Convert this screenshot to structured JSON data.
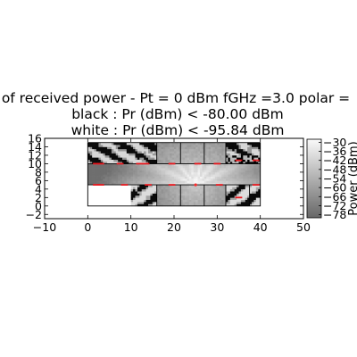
{
  "chart_data": {
    "type": "heatmap",
    "title_lines": [
      "of received power - Pt = 0 dBm fGHz =3.0 polar =",
      "black : Pr (dBm) < -80.00 dBm",
      "white : Pr (dBm) < -95.84 dBm"
    ],
    "xlim": [
      -10,
      50
    ],
    "ylim": [
      -3,
      16
    ],
    "xticks": [
      -10,
      0,
      10,
      20,
      30,
      40,
      50
    ],
    "yticks": [
      -2,
      0,
      2,
      4,
      6,
      8,
      10,
      12,
      14,
      16
    ],
    "grid": false,
    "colorbar": {
      "label": "Power (dBm)",
      "range": [
        -80,
        -28
      ],
      "ticks": [
        -30,
        -36,
        -42,
        -48,
        -54,
        -60,
        -66,
        -72,
        -78
      ],
      "colormap": "gray"
    },
    "building": {
      "outline": [
        [
          0,
          0
        ],
        [
          40,
          0
        ],
        [
          40,
          15
        ],
        [
          0,
          15
        ]
      ],
      "corridor_y": [
        5,
        10
      ],
      "top_room_walls_x": [
        16,
        21.5,
        27,
        32
      ],
      "bottom_room_walls_x": [
        16,
        21.5,
        27,
        32,
        37.5
      ],
      "transmitter": [
        25,
        5
      ]
    },
    "doors": [
      [
        2,
        10
      ],
      [
        3,
        10
      ],
      [
        7.5,
        10
      ],
      [
        12,
        10
      ],
      [
        13.5,
        10
      ],
      [
        19.5,
        10
      ],
      [
        25.5,
        10
      ],
      [
        30,
        10
      ],
      [
        35,
        10.8
      ],
      [
        39,
        10.8
      ],
      [
        2,
        5
      ],
      [
        3,
        5
      ],
      [
        8.5,
        5
      ],
      [
        14,
        5
      ],
      [
        19.5,
        5
      ],
      [
        30.5,
        5
      ],
      [
        39,
        5
      ],
      [
        35,
        2
      ]
    ],
    "colors": {
      "black_zone": "#000000",
      "white_zone": "#ffffff",
      "door": "#e8151b",
      "wall": "#000000"
    }
  }
}
